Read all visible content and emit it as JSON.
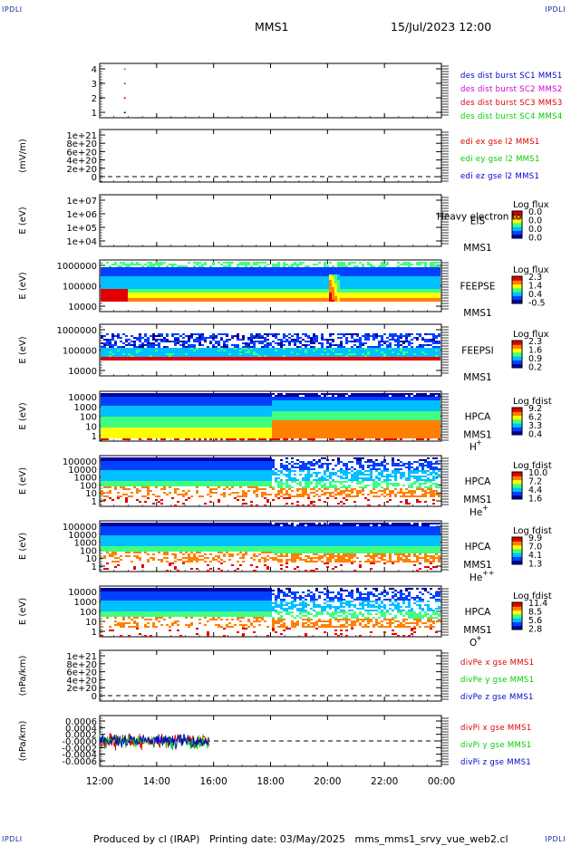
{
  "corners": {
    "tl": "IPDLI",
    "tr": "IPDLI",
    "bl": "IPDLI",
    "br": "IPDLI"
  },
  "header": {
    "spacecraft": "MMS1",
    "datetime": "15/Jul/2023 12:00"
  },
  "footer": {
    "text": "Produced by cl (IRAP)   Printing date: 03/May/2025   mms_mms1_srvy_vue_web2.cl"
  },
  "colors": {
    "red": "#dd0000",
    "magenta": "#cc00cc",
    "green": "#00cc00",
    "blue": "#0000cc",
    "colorbar": [
      "#0000a0",
      "#0040ff",
      "#00c0ff",
      "#40ff80",
      "#ffff00",
      "#ff8000",
      "#e00000"
    ]
  },
  "chart_data": {
    "type": "multi-panel",
    "time_ticks": [
      "12:00",
      "14:00",
      "16:00",
      "18:00",
      "20:00",
      "22:00",
      "00:00"
    ],
    "time_range_hours": [
      12,
      24
    ],
    "panels": [
      {
        "id": "burst",
        "type": "scatter",
        "ylabel": "",
        "yticks": [
          "4",
          "3",
          "2",
          "1"
        ],
        "ylim": [
          0.5,
          4.5
        ],
        "points": [
          {
            "x": 12.85,
            "y": 4,
            "color": "green"
          },
          {
            "x": 12.85,
            "y": 3,
            "color": "magenta"
          },
          {
            "x": 12.85,
            "y": 2,
            "color": "red"
          },
          {
            "x": 12.85,
            "y": 1,
            "color": "blue"
          }
        ],
        "legend": [
          {
            "label": "des dist burst SC1 MMS1",
            "color": "blue"
          },
          {
            "label": "des dist burst SC2 MMS2",
            "color": "magenta"
          },
          {
            "label": "des dist burst SC3 MMS3",
            "color": "red"
          },
          {
            "label": "des dist burst SC4 MMS4",
            "color": "green"
          }
        ]
      },
      {
        "id": "edi",
        "type": "line",
        "ylabel": "(mV/m)",
        "yticks": [
          "1e+21",
          "8e+20",
          "6e+20",
          "4e+20",
          "2e+20",
          "0"
        ],
        "ylim": [
          0,
          1e+21
        ],
        "series": [],
        "zero_line": true,
        "legend": [
          {
            "label": "edi ex gse l2 MMS1",
            "color": "red"
          },
          {
            "label": "edi ey gse l2 MMS1",
            "color": "green"
          },
          {
            "label": "edi ez gse l2 MMS1",
            "color": "blue"
          }
        ]
      },
      {
        "id": "eis",
        "type": "heatmap",
        "ylabel": "E (eV)",
        "yticks": [
          "1e+07",
          "1e+06",
          "1e+05",
          "1e+04"
        ],
        "log": true,
        "labels": [
          "EIS",
          "MMS1"
        ],
        "overlay_text": "Heavy electron to",
        "cbar_title": "Log flux",
        "cbar_ticks": [
          "0.0",
          "0.0",
          "0.0",
          "0.0"
        ],
        "pattern": "none"
      },
      {
        "id": "feepse",
        "type": "heatmap",
        "ylabel": "E (eV)",
        "yticks": [
          "1000000",
          "100000",
          "10000"
        ],
        "log": true,
        "labels": [
          "FEEPSE",
          "MMS1"
        ],
        "cbar_title": "Log flux",
        "cbar_ticks": [
          "2.3",
          "1.4",
          "0.4",
          "-0.5"
        ],
        "pattern": "feeps_e",
        "features": {
          "injection_time": 20.0
        }
      },
      {
        "id": "feepsi",
        "type": "heatmap",
        "ylabel": "E (eV)",
        "yticks": [
          "1000000",
          "100000",
          "10000"
        ],
        "log": true,
        "labels": [
          "FEEPSI",
          "MMS1"
        ],
        "cbar_title": "Log flux",
        "cbar_ticks": [
          "2.3",
          "1.6",
          "0.9",
          "0.2"
        ],
        "pattern": "feeps_i"
      },
      {
        "id": "hpca_h",
        "type": "heatmap",
        "ylabel": "E (eV)",
        "yticks": [
          "10000",
          "1000",
          "100",
          "10",
          "1"
        ],
        "log": true,
        "labels": [
          "HPCA",
          "MMS1"
        ],
        "species": "H",
        "charge": "+",
        "cbar_title": "Log fdist",
        "cbar_ticks": [
          "9.2",
          "6.2",
          "3.3",
          "0.4"
        ],
        "pattern": "hpca_h",
        "features": {
          "transition_time": 18.0
        }
      },
      {
        "id": "hpca_he",
        "type": "heatmap",
        "ylabel": "E (eV)",
        "yticks": [
          "100000",
          "10000",
          "1000",
          "100",
          "10",
          "1"
        ],
        "log": true,
        "labels": [
          "HPCA",
          "MMS1"
        ],
        "species": "He",
        "charge": "+",
        "cbar_title": "Log fdist",
        "cbar_ticks": [
          "10.0",
          "7.2",
          "4.4",
          "1.6"
        ],
        "pattern": "hpca_he",
        "features": {
          "transition_time": 18.0
        }
      },
      {
        "id": "hpca_he2",
        "type": "heatmap",
        "ylabel": "E (eV)",
        "yticks": [
          "100000",
          "10000",
          "1000",
          "100",
          "10",
          "1"
        ],
        "log": true,
        "labels": [
          "HPCA",
          "MMS1"
        ],
        "species": "He",
        "charge": "++",
        "cbar_title": "Log fdist",
        "cbar_ticks": [
          "9.9",
          "7.0",
          "4.1",
          "1.3"
        ],
        "pattern": "hpca_he2",
        "features": {
          "transition_time": 18.0
        }
      },
      {
        "id": "hpca_o",
        "type": "heatmap",
        "ylabel": "E (eV)",
        "yticks": [
          "10000",
          "1000",
          "100",
          "10",
          "1"
        ],
        "log": true,
        "labels": [
          "HPCA",
          "MMS1"
        ],
        "species": "O",
        "charge": "+",
        "cbar_title": "Log fdist",
        "cbar_ticks": [
          "11.4",
          "8.5",
          "5.6",
          "2.8"
        ],
        "pattern": "hpca_o",
        "features": {
          "transition_time": 18.0
        }
      },
      {
        "id": "divpe",
        "type": "line",
        "ylabel": "(nPa/km)",
        "yticks": [
          "1e+21",
          "8e+20",
          "6e+20",
          "4e+20",
          "2e+20",
          "0"
        ],
        "ylim": [
          0,
          1e+21
        ],
        "series": [],
        "zero_line": true,
        "legend": [
          {
            "label": "divPe x gse MMS1",
            "color": "red"
          },
          {
            "label": "divPe y gse MMS1",
            "color": "green"
          },
          {
            "label": "divPe z gse MMS1",
            "color": "blue"
          }
        ]
      },
      {
        "id": "divpi",
        "type": "line",
        "ylabel": "(nPa/km)",
        "yticks": [
          "0.0006",
          "0.0004",
          "0.0002",
          "-0.0000",
          "-0.0002",
          "-0.0004",
          "-0.0006"
        ],
        "ylim": [
          -0.0006,
          0.0006
        ],
        "zero_line": true,
        "series_time_range": [
          12.0,
          15.85
        ],
        "series_amplitude": 0.0002,
        "legend": [
          {
            "label": "divPi x gse MMS1",
            "color": "red"
          },
          {
            "label": "divPi y gse MMS1",
            "color": "green"
          },
          {
            "label": "divPi z gse MMS1",
            "color": "blue"
          }
        ]
      }
    ]
  }
}
